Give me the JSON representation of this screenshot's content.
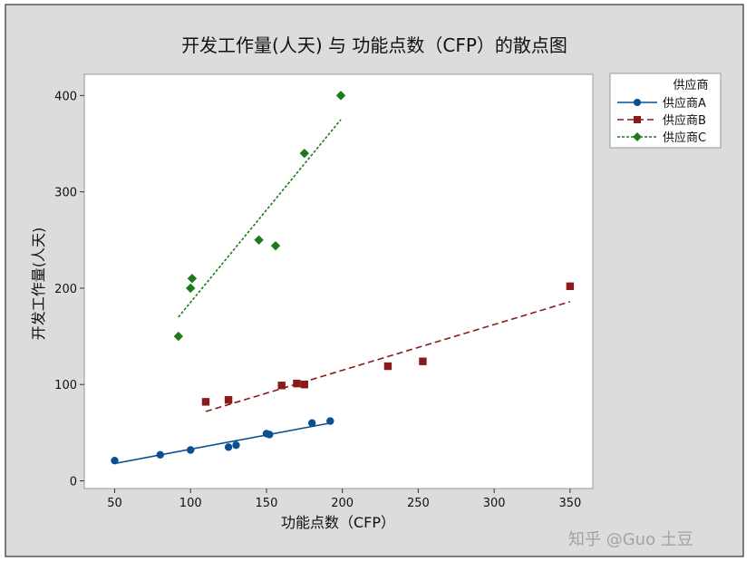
{
  "chart_data": {
    "type": "scatter",
    "title": "开发工作量(人天)  与 功能点数（CFP）的散点图",
    "xlabel": "功能点数（CFP）",
    "ylabel": "开发工作量(人天)",
    "xlim": [
      30,
      365
    ],
    "ylim": [
      -8,
      422
    ],
    "xticks": [
      50,
      100,
      150,
      200,
      250,
      300,
      350
    ],
    "yticks": [
      0,
      100,
      200,
      300,
      400
    ],
    "grid": false,
    "legend": {
      "position": "top-right, outside plot",
      "title": "供应商"
    },
    "series": [
      {
        "name": "供应商A",
        "color": "#0a4f94",
        "marker": "circle",
        "line": "solid",
        "points": [
          [
            50,
            21
          ],
          [
            80,
            27
          ],
          [
            100,
            32
          ],
          [
            125,
            35
          ],
          [
            130,
            37
          ],
          [
            150,
            49
          ],
          [
            152,
            48
          ],
          [
            180,
            60
          ],
          [
            192,
            62
          ]
        ],
        "fit": [
          [
            50,
            18
          ],
          [
            192,
            60
          ]
        ]
      },
      {
        "name": "供应商B",
        "color": "#8b1a1a",
        "marker": "square",
        "line": "dashed",
        "points": [
          [
            110,
            82
          ],
          [
            125,
            84
          ],
          [
            160,
            99
          ],
          [
            170,
            101
          ],
          [
            175,
            100
          ],
          [
            230,
            119
          ],
          [
            253,
            124
          ],
          [
            350,
            202
          ]
        ],
        "fit": [
          [
            110,
            72
          ],
          [
            350,
            186
          ]
        ]
      },
      {
        "name": "供应商C",
        "color": "#1b7a1b",
        "marker": "diamond",
        "line": "dotted",
        "points": [
          [
            92,
            150
          ],
          [
            100,
            200
          ],
          [
            101,
            210
          ],
          [
            145,
            250
          ],
          [
            156,
            244
          ],
          [
            175,
            340
          ],
          [
            199,
            400
          ]
        ],
        "fit": [
          [
            92,
            170
          ],
          [
            199,
            375
          ]
        ]
      }
    ]
  },
  "watermark": "知乎 @Guo 土豆"
}
